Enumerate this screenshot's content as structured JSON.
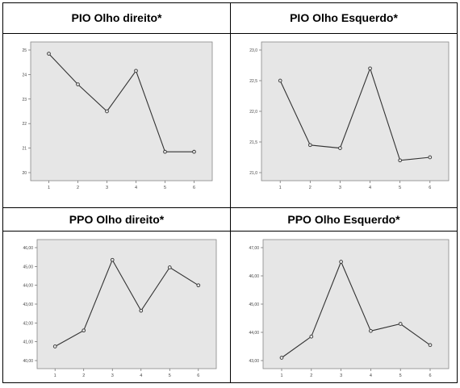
{
  "titles": [
    "PIO Olho direito*",
    "PIO Olho Esquerdo*",
    "PPO Olho direito*",
    "PPO Olho Esquerdo*"
  ],
  "chart_data": [
    {
      "type": "line",
      "title": "PIO Olho direito*",
      "x": [
        1,
        2,
        3,
        4,
        5,
        6
      ],
      "values": [
        24.85,
        23.6,
        22.5,
        24.15,
        20.85,
        20.85
      ],
      "yticks": [
        20,
        21,
        22,
        23,
        24,
        25
      ],
      "yticklabels": [
        "20",
        "21",
        "22",
        "23",
        "24",
        "25"
      ],
      "xticklabels": [
        "1",
        "2",
        "3",
        "4",
        "5",
        "6"
      ],
      "ylim": [
        20,
        25
      ],
      "grid": false
    },
    {
      "type": "line",
      "title": "PIO Olho Esquerdo*",
      "x": [
        1,
        2,
        3,
        4,
        5,
        6
      ],
      "values": [
        22.5,
        21.45,
        21.4,
        22.7,
        21.2,
        21.25
      ],
      "yticks": [
        21.0,
        21.5,
        22.0,
        22.5,
        23.0
      ],
      "yticklabels": [
        "21,0",
        "21,5",
        "22,0",
        "22,5",
        "23,0"
      ],
      "xticklabels": [
        "1",
        "2",
        "3",
        "4",
        "5",
        "6"
      ],
      "ylim": [
        21.0,
        23.0
      ],
      "grid": false
    },
    {
      "type": "line",
      "title": "PPO Olho direito*",
      "x": [
        1,
        2,
        3,
        4,
        5,
        6
      ],
      "values": [
        40.75,
        41.6,
        45.35,
        42.65,
        44.95,
        44.0
      ],
      "yticks": [
        40,
        41,
        42,
        43,
        44,
        45,
        46
      ],
      "yticklabels": [
        "40,00",
        "41,00",
        "42,00",
        "43,00",
        "44,00",
        "45,00",
        "46,00"
      ],
      "xticklabels": [
        "1",
        "2",
        "3",
        "4",
        "5",
        "6"
      ],
      "ylim": [
        40,
        46
      ],
      "grid": false
    },
    {
      "type": "line",
      "title": "PPO Olho Esquerdo*",
      "x": [
        1,
        2,
        3,
        4,
        5,
        6
      ],
      "values": [
        43.1,
        43.85,
        46.5,
        44.05,
        44.3,
        43.55
      ],
      "yticks": [
        43,
        44,
        45,
        46,
        47
      ],
      "yticklabels": [
        "43,00",
        "44,00",
        "45,00",
        "46,00",
        "47,00"
      ],
      "xticklabels": [
        "1",
        "2",
        "3",
        "4",
        "5",
        "6"
      ],
      "ylim": [
        43,
        47
      ],
      "grid": false
    }
  ]
}
